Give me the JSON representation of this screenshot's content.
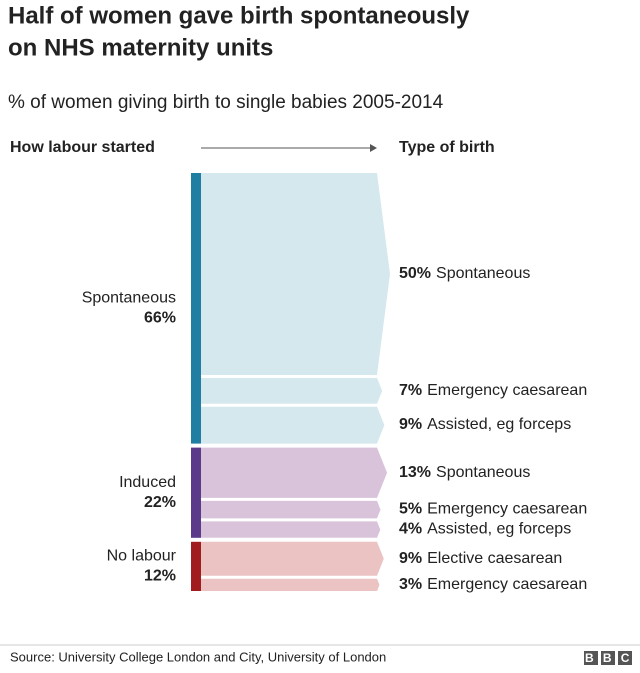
{
  "chart_data": {
    "type": "flow",
    "title": [
      "Half of women gave birth spontaneously",
      "on NHS maternity units"
    ],
    "subtitle": "% of women giving birth to single babies 2005-2014",
    "left_header": "How labour started",
    "right_header": "Type of birth",
    "groups": [
      {
        "name": "Spontaneous",
        "value": 66,
        "value_label": "66%",
        "color": "#1f7ea1",
        "fill": "#d5e8ed",
        "outcomes": [
          {
            "name": "Spontaneous",
            "value": 50,
            "value_label": "50%"
          },
          {
            "name": "Emergency caesarean",
            "value": 7,
            "value_label": "7%"
          },
          {
            "name": "Assisted, eg forceps",
            "value": 9,
            "value_label": "9%"
          }
        ]
      },
      {
        "name": "Induced",
        "value": 22,
        "value_label": "22%",
        "color": "#5c3a8a",
        "fill": "#d8c3db",
        "outcomes": [
          {
            "name": "Spontaneous",
            "value": 13,
            "value_label": "13%"
          },
          {
            "name": "Emergency caesarean",
            "value": 5,
            "value_label": "5%"
          },
          {
            "name": "Assisted, eg forceps",
            "value": 4,
            "value_label": "4%"
          }
        ]
      },
      {
        "name": "No labour",
        "value": 12,
        "value_label": "12%",
        "color": "#a01c1e",
        "fill": "#ebc3c3",
        "outcomes": [
          {
            "name": "Elective caesarean",
            "value": 9,
            "value_label": "9%"
          },
          {
            "name": "Emergency caesarean",
            "value": 3,
            "value_label": "3%"
          }
        ]
      }
    ],
    "source": "Source: University College London and City, University of London",
    "logo": "BBC"
  }
}
